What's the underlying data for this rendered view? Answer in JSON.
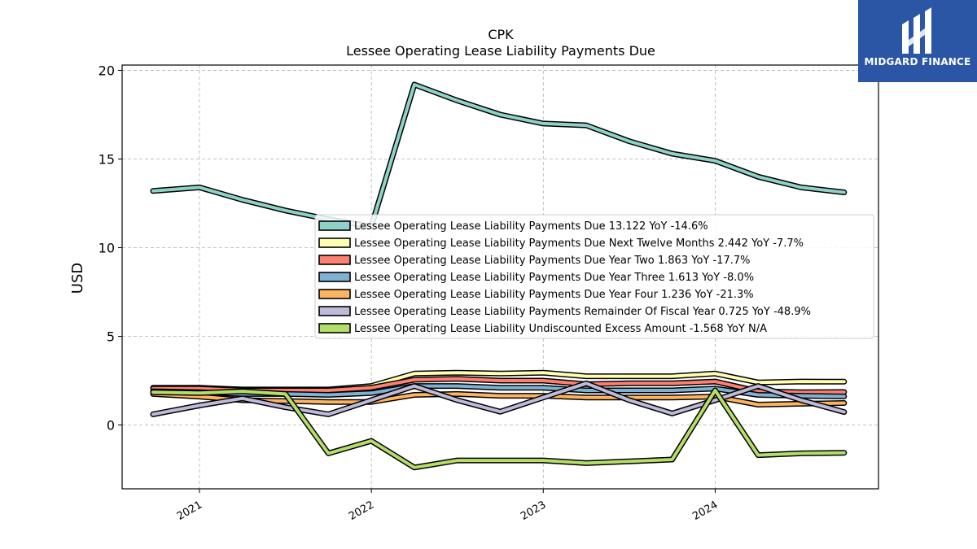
{
  "chart_data": {
    "type": "line",
    "title": "CPK",
    "subtitle": "Lessee Operating Lease Liability Payments Due",
    "ylabel": "USD",
    "xlabel": "",
    "ylim": [
      -3.6,
      20.3
    ],
    "yticks": [
      0,
      5,
      10,
      15,
      20
    ],
    "xlim": [
      2020.55,
      2024.95
    ],
    "xticks": [
      {
        "value": 2021,
        "label": "2021"
      },
      {
        "value": 2022,
        "label": "2022"
      },
      {
        "value": 2023,
        "label": "2023"
      },
      {
        "value": 2024,
        "label": "2024"
      }
    ],
    "grid": true,
    "legend_position": "center-right",
    "x": [
      2020.73,
      2021.0,
      2021.25,
      2021.5,
      2021.75,
      2022.0,
      2022.25,
      2022.5,
      2022.75,
      2023.0,
      2023.25,
      2023.5,
      2023.75,
      2024.0,
      2024.25,
      2024.5,
      2024.75
    ],
    "series": [
      {
        "name": "Lessee Operating Lease Liability Payments Due",
        "legend": "Lessee Operating Lease Liability Payments Due  13.122 YoY -14.6%",
        "color": "#8dd3c7",
        "values": [
          13.2,
          13.4,
          12.7,
          12.1,
          11.6,
          11.2,
          19.2,
          18.3,
          17.5,
          17.0,
          16.9,
          16.0,
          15.3,
          14.9,
          14.0,
          13.4,
          13.12
        ]
      },
      {
        "name": "Lessee Operating Lease Liability Payments Due Next Twelve Months",
        "legend": "Lessee Operating Lease Liability Payments Due Next Twelve Months  2.442 YoY -7.7%",
        "color": "#ffffb3",
        "values": [
          2.1,
          2.1,
          2.0,
          2.0,
          2.0,
          2.2,
          2.9,
          2.95,
          2.9,
          2.95,
          2.75,
          2.75,
          2.75,
          2.9,
          2.4,
          2.45,
          2.44
        ]
      },
      {
        "name": "Lessee Operating Lease Liability Payments Due Year Two",
        "legend": "Lessee Operating Lease Liability Payments Due Year Two  1.863 YoY -17.7%",
        "color": "#fb8072",
        "values": [
          2.05,
          2.05,
          1.95,
          1.95,
          1.95,
          2.1,
          2.55,
          2.6,
          2.5,
          2.5,
          2.3,
          2.35,
          2.35,
          2.45,
          1.9,
          1.85,
          1.86
        ]
      },
      {
        "name": "Lessee Operating Lease Liability Payments Due Year Three",
        "legend": "Lessee Operating Lease Liability Payments Due Year Three  1.613 YoY -8.0%",
        "color": "#80b1d3",
        "values": [
          1.9,
          1.85,
          1.75,
          1.75,
          1.7,
          1.8,
          2.2,
          2.2,
          2.1,
          2.1,
          1.95,
          1.95,
          1.95,
          2.05,
          1.7,
          1.65,
          1.61
        ]
      },
      {
        "name": "Lessee Operating Lease Liability Payments Due Year Four",
        "legend": "Lessee Operating Lease Liability Payments Due Year Four  1.236 YoY -21.3%",
        "color": "#fdb462",
        "values": [
          1.75,
          1.6,
          1.4,
          1.35,
          1.3,
          1.3,
          1.7,
          1.75,
          1.65,
          1.65,
          1.55,
          1.55,
          1.55,
          1.6,
          1.15,
          1.2,
          1.24
        ]
      },
      {
        "name": "Lessee Operating Lease Liability Payments Remainder Of Fiscal Year",
        "legend": "Lessee Operating Lease Liability Payments Remainder Of Fiscal Year  0.725 YoY -48.9%",
        "color": "#bebada",
        "values": [
          0.6,
          1.1,
          1.5,
          1.0,
          0.6,
          1.4,
          2.2,
          1.4,
          0.75,
          1.55,
          2.35,
          1.4,
          0.65,
          1.4,
          2.2,
          1.4,
          0.73
        ]
      },
      {
        "name": "Lessee Operating Lease Liability Undiscounted Excess Amount",
        "legend": "Lessee Operating Lease Liability Undiscounted Excess Amount  -1.568 YoY N/A",
        "color": "#b3de69",
        "values": [
          1.85,
          1.8,
          1.9,
          1.75,
          -1.6,
          -0.9,
          -2.4,
          -2.0,
          -2.0,
          -2.0,
          -2.15,
          -2.05,
          -1.95,
          1.95,
          -1.7,
          -1.6,
          -1.57
        ]
      }
    ]
  },
  "brand": {
    "name": "MIDGARD FINANCE",
    "color": "#2b56a6",
    "icon": "midgard-logo-icon"
  }
}
